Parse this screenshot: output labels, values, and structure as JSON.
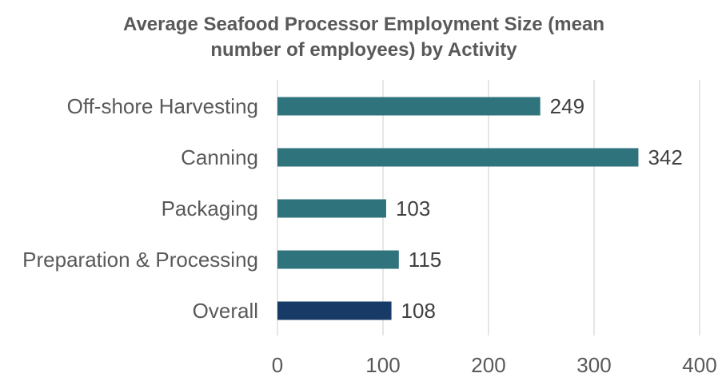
{
  "chart_data": {
    "type": "bar",
    "orientation": "horizontal",
    "title": [
      "Average Seafood Processor Employment Size (mean",
      "number of employees) by Activity"
    ],
    "categories": [
      "Off-shore Harvesting",
      "Canning",
      "Packaging",
      "Preparation & Processing",
      "Overall"
    ],
    "values": [
      249,
      342,
      103,
      115,
      108
    ],
    "data_labels": [
      "249",
      "342",
      "103",
      "115",
      "108"
    ],
    "xlim": [
      0,
      400
    ],
    "xticks": [
      0,
      100,
      200,
      300,
      400
    ],
    "xtick_labels": [
      "0",
      "100",
      "200",
      "300",
      "400"
    ],
    "grid": "vertical",
    "xlabel": "",
    "ylabel": "",
    "colors": {
      "default": "#2f737d",
      "highlight": "#173a66",
      "highlight_category": "Overall"
    }
  }
}
